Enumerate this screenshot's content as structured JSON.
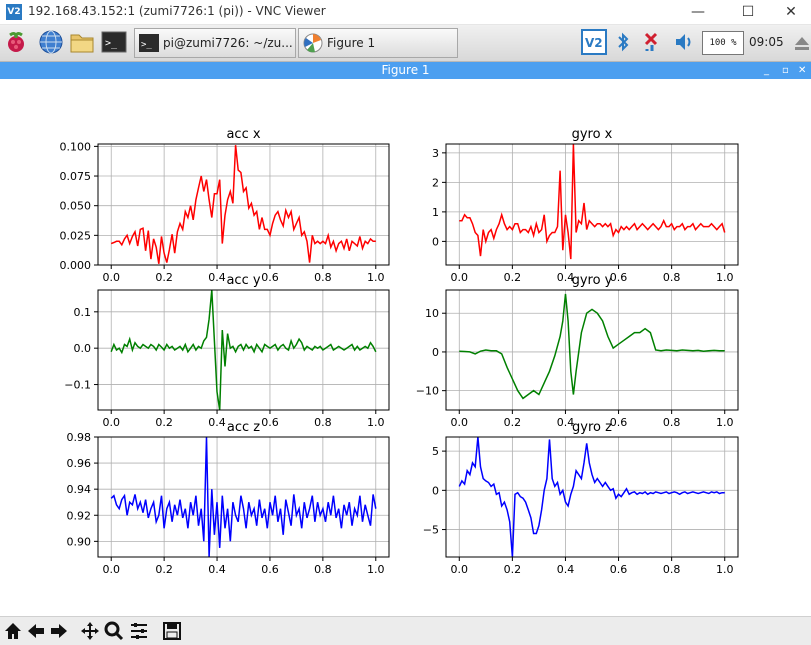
{
  "window": {
    "logo_text": "V2",
    "title": "192.168.43.152:1 (zumi7726:1 (pi)) - VNC Viewer",
    "minimize": "—",
    "maximize": "☐",
    "close": "✕"
  },
  "panel": {
    "terminal_task": "pi@zumi7726: ~/zu...",
    "figure_task": "Figure 1",
    "volume": "100 %",
    "clock": "09:05"
  },
  "figure_window": {
    "title": "Figure 1",
    "minimize": "_",
    "maximize": "▫",
    "close": "✕"
  },
  "colors": {
    "x_series": "#ff0000",
    "y_series": "#008000",
    "z_series": "#0000ff",
    "grid": "#b0b0b0"
  },
  "toolbar": {
    "icons": [
      "home-icon",
      "back-icon",
      "forward-icon",
      "pan-icon",
      "zoom-icon",
      "configure-subplots-icon",
      "save-icon"
    ]
  },
  "chart_data": [
    {
      "type": "line",
      "title": "acc x",
      "color": "#ff0000",
      "xlim": [
        -0.05,
        1.05
      ],
      "ylim": [
        0.0,
        0.102
      ],
      "xticks": [
        "0.0",
        "0.2",
        "0.4",
        "0.6",
        "0.8",
        "1.0"
      ],
      "yticks": [
        "0.000",
        "0.025",
        "0.050",
        "0.075",
        "0.100"
      ],
      "ytick_values": [
        0,
        0.025,
        0.05,
        0.075,
        0.1
      ],
      "x": [
        0.0,
        0.01,
        0.02,
        0.03,
        0.04,
        0.05,
        0.06,
        0.07,
        0.08,
        0.09,
        0.1,
        0.11,
        0.12,
        0.13,
        0.14,
        0.15,
        0.16,
        0.17,
        0.18,
        0.19,
        0.2,
        0.21,
        0.22,
        0.23,
        0.24,
        0.25,
        0.26,
        0.27,
        0.28,
        0.29,
        0.3,
        0.31,
        0.32,
        0.33,
        0.34,
        0.35,
        0.36,
        0.37,
        0.38,
        0.39,
        0.4,
        0.41,
        0.42,
        0.43,
        0.44,
        0.45,
        0.46,
        0.47,
        0.48,
        0.49,
        0.5,
        0.51,
        0.52,
        0.53,
        0.54,
        0.55,
        0.56,
        0.57,
        0.58,
        0.59,
        0.6,
        0.61,
        0.62,
        0.63,
        0.64,
        0.65,
        0.66,
        0.67,
        0.68,
        0.69,
        0.7,
        0.71,
        0.72,
        0.73,
        0.74,
        0.75,
        0.76,
        0.77,
        0.78,
        0.79,
        0.8,
        0.81,
        0.82,
        0.83,
        0.84,
        0.85,
        0.86,
        0.87,
        0.88,
        0.89,
        0.9,
        0.91,
        0.92,
        0.93,
        0.94,
        0.95,
        0.96,
        0.97,
        0.98,
        0.99,
        1.0
      ],
      "values": [
        0.018,
        0.019,
        0.02,
        0.02,
        0.017,
        0.022,
        0.025,
        0.018,
        0.024,
        0.028,
        0.016,
        0.03,
        0.031,
        0.012,
        0.029,
        0.005,
        0.022,
        0.015,
        0.001,
        0.024,
        0.01,
        0.002,
        0.013,
        0.026,
        0.01,
        0.028,
        0.035,
        0.03,
        0.045,
        0.04,
        0.05,
        0.038,
        0.055,
        0.065,
        0.075,
        0.062,
        0.072,
        0.055,
        0.04,
        0.06,
        0.06,
        0.072,
        0.018,
        0.042,
        0.055,
        0.062,
        0.052,
        0.101,
        0.08,
        0.078,
        0.062,
        0.065,
        0.048,
        0.052,
        0.042,
        0.045,
        0.03,
        0.04,
        0.03,
        0.03,
        0.025,
        0.035,
        0.042,
        0.045,
        0.038,
        0.033,
        0.046,
        0.04,
        0.045,
        0.03,
        0.035,
        0.04,
        0.025,
        0.028,
        0.02,
        0.002,
        0.025,
        0.018,
        0.02,
        0.018,
        0.02,
        0.018,
        0.025,
        0.015,
        0.02,
        0.012,
        0.018,
        0.02,
        0.014,
        0.022,
        0.012,
        0.02,
        0.018,
        0.016,
        0.024,
        0.014,
        0.02,
        0.018,
        0.022,
        0.02,
        0.02
      ]
    },
    {
      "type": "line",
      "title": "gyro x",
      "color": "#ff0000",
      "xlim": [
        -0.05,
        1.05
      ],
      "ylim": [
        -0.8,
        3.3
      ],
      "xticks": [
        "0.0",
        "0.2",
        "0.4",
        "0.6",
        "0.8",
        "1.0"
      ],
      "yticks": [
        "0",
        "1",
        "2",
        "3"
      ],
      "ytick_values": [
        0,
        1,
        2,
        3
      ],
      "x": [
        0.0,
        0.01,
        0.02,
        0.03,
        0.04,
        0.05,
        0.06,
        0.07,
        0.08,
        0.09,
        0.1,
        0.11,
        0.12,
        0.13,
        0.14,
        0.15,
        0.16,
        0.17,
        0.18,
        0.19,
        0.2,
        0.21,
        0.22,
        0.23,
        0.24,
        0.25,
        0.26,
        0.27,
        0.28,
        0.29,
        0.3,
        0.31,
        0.32,
        0.33,
        0.34,
        0.35,
        0.36,
        0.37,
        0.38,
        0.39,
        0.4,
        0.41,
        0.42,
        0.43,
        0.44,
        0.45,
        0.46,
        0.47,
        0.48,
        0.49,
        0.5,
        0.51,
        0.52,
        0.53,
        0.54,
        0.55,
        0.56,
        0.57,
        0.58,
        0.59,
        0.6,
        0.61,
        0.62,
        0.63,
        0.64,
        0.65,
        0.66,
        0.67,
        0.68,
        0.69,
        0.7,
        0.71,
        0.72,
        0.73,
        0.74,
        0.75,
        0.76,
        0.77,
        0.78,
        0.79,
        0.8,
        0.81,
        0.82,
        0.83,
        0.84,
        0.85,
        0.86,
        0.87,
        0.88,
        0.89,
        0.9,
        0.91,
        0.92,
        0.93,
        0.94,
        0.95,
        0.96,
        0.97,
        0.98,
        0.99,
        1.0
      ],
      "values": [
        0.7,
        0.7,
        0.9,
        0.8,
        0.8,
        0.6,
        0.3,
        0.2,
        -0.5,
        0.4,
        0.0,
        0.3,
        0.4,
        0.1,
        0.4,
        0.6,
        0.9,
        0.6,
        0.4,
        0.5,
        0.4,
        0.6,
        0.6,
        0.3,
        0.4,
        0.4,
        0.3,
        0.5,
        0.2,
        0.6,
        0.3,
        0.4,
        0.9,
        0.0,
        0.2,
        0.3,
        0.3,
        0.5,
        2.4,
        -0.3,
        0.9,
        0.3,
        -0.6,
        3.3,
        0.3,
        0.7,
        0.6,
        1.3,
        0.4,
        0.7,
        0.6,
        0.5,
        0.6,
        0.6,
        0.5,
        0.6,
        0.5,
        0.6,
        0.2,
        0.4,
        0.3,
        0.5,
        0.4,
        0.5,
        0.4,
        0.5,
        0.6,
        0.4,
        0.5,
        0.6,
        0.5,
        0.4,
        0.5,
        0.6,
        0.5,
        0.4,
        0.5,
        0.7,
        0.5,
        0.5,
        0.6,
        0.4,
        0.5,
        0.5,
        0.6,
        0.4,
        0.5,
        0.5,
        0.6,
        0.4,
        0.5,
        0.6,
        0.5,
        0.5,
        0.5,
        0.6,
        0.5,
        0.4,
        0.5,
        0.6,
        0.3
      ]
    },
    {
      "type": "line",
      "title": "acc y",
      "color": "#008000",
      "xlim": [
        -0.05,
        1.05
      ],
      "ylim": [
        -0.17,
        0.16
      ],
      "xticks": [
        "0.0",
        "0.2",
        "0.4",
        "0.6",
        "0.8",
        "1.0"
      ],
      "yticks": [
        "−0.1",
        "0.0",
        "0.1"
      ],
      "ytick_values": [
        -0.1,
        0,
        0.1
      ],
      "x": [
        0.0,
        0.01,
        0.02,
        0.03,
        0.04,
        0.05,
        0.06,
        0.07,
        0.08,
        0.09,
        0.1,
        0.11,
        0.12,
        0.13,
        0.14,
        0.15,
        0.16,
        0.17,
        0.18,
        0.19,
        0.2,
        0.21,
        0.22,
        0.23,
        0.24,
        0.25,
        0.26,
        0.27,
        0.28,
        0.29,
        0.3,
        0.31,
        0.32,
        0.33,
        0.34,
        0.35,
        0.36,
        0.37,
        0.38,
        0.39,
        0.4,
        0.41,
        0.42,
        0.43,
        0.44,
        0.45,
        0.46,
        0.47,
        0.48,
        0.49,
        0.5,
        0.51,
        0.52,
        0.53,
        0.54,
        0.55,
        0.56,
        0.57,
        0.58,
        0.59,
        0.6,
        0.61,
        0.62,
        0.63,
        0.64,
        0.65,
        0.66,
        0.67,
        0.68,
        0.69,
        0.7,
        0.71,
        0.72,
        0.73,
        0.74,
        0.75,
        0.76,
        0.77,
        0.78,
        0.79,
        0.8,
        0.81,
        0.82,
        0.83,
        0.84,
        0.85,
        0.86,
        0.87,
        0.88,
        0.89,
        0.9,
        0.91,
        0.92,
        0.93,
        0.94,
        0.95,
        0.96,
        0.97,
        0.98,
        0.99,
        1.0
      ],
      "values": [
        -0.01,
        0.01,
        -0.005,
        0.0,
        -0.012,
        0.01,
        0.005,
        0.025,
        -0.005,
        0.015,
        0.005,
        0.0,
        0.01,
        0.005,
        0.0,
        0.01,
        0.005,
        -0.005,
        0.01,
        0.003,
        -0.005,
        0.01,
        0.0,
        0.005,
        -0.005,
        0.0,
        0.005,
        -0.005,
        0.01,
        -0.01,
        0.0,
        0.01,
        -0.005,
        0.005,
        0.0,
        0.02,
        0.03,
        0.08,
        0.16,
        0.02,
        -0.12,
        -0.17,
        0.05,
        -0.05,
        0.04,
        0.0,
        0.005,
        -0.01,
        0.005,
        0.01,
        -0.005,
        0.01,
        0.0,
        0.005,
        -0.01,
        0.01,
        0.0,
        -0.01,
        0.01,
        0.005,
        0.0,
        0.005,
        0.01,
        -0.005,
        0.005,
        0.01,
        0.0,
        -0.005,
        0.02,
        0.0,
        0.01,
        0.025,
        0.015,
        -0.005,
        0.005,
        0.0,
        -0.005,
        0.005,
        0.0,
        0.005,
        -0.005,
        0.0,
        0.005,
        0.01,
        -0.005,
        0.0,
        0.005,
        0.0,
        -0.005,
        0.0,
        0.005,
        0.01,
        -0.005,
        0.005,
        -0.005,
        0.0,
        0.005,
        0.0,
        0.015,
        0.005,
        -0.01
      ]
    },
    {
      "type": "line",
      "title": "gyro y",
      "color": "#008000",
      "xlim": [
        -0.05,
        1.05
      ],
      "ylim": [
        -15,
        16
      ],
      "xticks": [
        "0.0",
        "0.2",
        "0.4",
        "0.6",
        "0.8",
        "1.0"
      ],
      "yticks": [
        "−10",
        "0",
        "10"
      ],
      "ytick_values": [
        -10,
        0,
        10
      ],
      "x": [
        0.0,
        0.02,
        0.04,
        0.06,
        0.08,
        0.1,
        0.12,
        0.14,
        0.16,
        0.18,
        0.2,
        0.22,
        0.24,
        0.26,
        0.28,
        0.3,
        0.32,
        0.34,
        0.36,
        0.38,
        0.39,
        0.4,
        0.41,
        0.42,
        0.43,
        0.44,
        0.46,
        0.48,
        0.5,
        0.52,
        0.54,
        0.56,
        0.58,
        0.6,
        0.62,
        0.64,
        0.66,
        0.68,
        0.7,
        0.72,
        0.74,
        0.76,
        0.78,
        0.8,
        0.82,
        0.84,
        0.86,
        0.88,
        0.9,
        0.92,
        0.94,
        0.96,
        0.98,
        1.0
      ],
      "values": [
        0.2,
        0.1,
        0.0,
        -0.5,
        0.2,
        0.5,
        0.3,
        0.3,
        -0.5,
        -4,
        -7,
        -10,
        -12,
        -11,
        -10,
        -11,
        -8,
        -5,
        -1,
        4,
        8,
        15,
        8,
        -5,
        -11,
        -5,
        5,
        10,
        11,
        10,
        8,
        4,
        1,
        2,
        3,
        4,
        5,
        5,
        6,
        5,
        0.5,
        0.3,
        0.5,
        0.4,
        0.3,
        0.5,
        0.4,
        0.3,
        0.4,
        0.2,
        0.3,
        0.4,
        0.3,
        0.3
      ]
    },
    {
      "type": "line",
      "title": "acc z",
      "color": "#0000ff",
      "xlim": [
        -0.05,
        1.05
      ],
      "ylim": [
        0.888,
        0.98
      ],
      "xticks": [
        "0.0",
        "0.2",
        "0.4",
        "0.6",
        "0.8",
        "1.0"
      ],
      "yticks": [
        "0.90",
        "0.92",
        "0.94",
        "0.96",
        "0.98"
      ],
      "ytick_values": [
        0.9,
        0.92,
        0.94,
        0.96,
        0.98
      ],
      "x": [
        0.0,
        0.01,
        0.02,
        0.03,
        0.04,
        0.05,
        0.06,
        0.07,
        0.08,
        0.09,
        0.1,
        0.11,
        0.12,
        0.13,
        0.14,
        0.15,
        0.16,
        0.17,
        0.18,
        0.19,
        0.2,
        0.21,
        0.22,
        0.23,
        0.24,
        0.25,
        0.26,
        0.27,
        0.28,
        0.29,
        0.3,
        0.31,
        0.32,
        0.33,
        0.34,
        0.35,
        0.36,
        0.37,
        0.38,
        0.39,
        0.4,
        0.41,
        0.42,
        0.43,
        0.44,
        0.45,
        0.46,
        0.47,
        0.48,
        0.49,
        0.5,
        0.51,
        0.52,
        0.53,
        0.54,
        0.55,
        0.56,
        0.57,
        0.58,
        0.59,
        0.6,
        0.61,
        0.62,
        0.63,
        0.64,
        0.65,
        0.66,
        0.67,
        0.68,
        0.69,
        0.7,
        0.71,
        0.72,
        0.73,
        0.74,
        0.75,
        0.76,
        0.77,
        0.78,
        0.79,
        0.8,
        0.81,
        0.82,
        0.83,
        0.84,
        0.85,
        0.86,
        0.87,
        0.88,
        0.89,
        0.9,
        0.91,
        0.92,
        0.93,
        0.94,
        0.95,
        0.96,
        0.97,
        0.98,
        0.99,
        1.0
      ],
      "values": [
        0.933,
        0.935,
        0.928,
        0.925,
        0.932,
        0.935,
        0.92,
        0.93,
        0.928,
        0.936,
        0.925,
        0.93,
        0.922,
        0.932,
        0.918,
        0.925,
        0.93,
        0.915,
        0.92,
        0.935,
        0.91,
        0.925,
        0.93,
        0.915,
        0.928,
        0.92,
        0.932,
        0.918,
        0.925,
        0.91,
        0.93,
        0.92,
        0.935,
        0.912,
        0.925,
        0.9,
        0.98,
        0.888,
        0.94,
        0.905,
        0.93,
        0.895,
        0.935,
        0.91,
        0.925,
        0.9,
        0.93,
        0.92,
        0.915,
        0.935,
        0.925,
        0.91,
        0.93,
        0.92,
        0.925,
        0.912,
        0.932,
        0.918,
        0.925,
        0.91,
        0.93,
        0.92,
        0.935,
        0.915,
        0.925,
        0.905,
        0.932,
        0.922,
        0.912,
        0.936,
        0.92,
        0.925,
        0.91,
        0.93,
        0.918,
        0.925,
        0.935,
        0.915,
        0.93,
        0.92,
        0.925,
        0.915,
        0.93,
        0.92,
        0.935,
        0.918,
        0.925,
        0.91,
        0.928,
        0.92,
        0.93,
        0.912,
        0.925,
        0.92,
        0.935,
        0.915,
        0.928,
        0.92,
        0.912,
        0.936,
        0.925
      ]
    },
    {
      "type": "line",
      "title": "gyro z",
      "color": "#0000ff",
      "xlim": [
        -0.05,
        1.05
      ],
      "ylim": [
        -8.5,
        6.8
      ],
      "xticks": [
        "0.0",
        "0.2",
        "0.4",
        "0.6",
        "0.8",
        "1.0"
      ],
      "yticks": [
        "−5",
        "0",
        "5"
      ],
      "ytick_values": [
        -5,
        0,
        5
      ],
      "x": [
        0.0,
        0.01,
        0.02,
        0.03,
        0.04,
        0.05,
        0.06,
        0.07,
        0.08,
        0.09,
        0.1,
        0.11,
        0.12,
        0.13,
        0.14,
        0.15,
        0.16,
        0.17,
        0.18,
        0.19,
        0.2,
        0.21,
        0.22,
        0.23,
        0.24,
        0.25,
        0.26,
        0.27,
        0.28,
        0.29,
        0.3,
        0.31,
        0.32,
        0.33,
        0.34,
        0.35,
        0.36,
        0.37,
        0.38,
        0.39,
        0.4,
        0.41,
        0.42,
        0.43,
        0.44,
        0.45,
        0.46,
        0.47,
        0.48,
        0.49,
        0.5,
        0.51,
        0.52,
        0.53,
        0.54,
        0.55,
        0.56,
        0.57,
        0.58,
        0.59,
        0.6,
        0.61,
        0.62,
        0.63,
        0.64,
        0.65,
        0.66,
        0.67,
        0.68,
        0.69,
        0.7,
        0.71,
        0.72,
        0.73,
        0.74,
        0.75,
        0.76,
        0.77,
        0.78,
        0.79,
        0.8,
        0.81,
        0.82,
        0.83,
        0.84,
        0.85,
        0.86,
        0.87,
        0.88,
        0.89,
        0.9,
        0.91,
        0.92,
        0.93,
        0.94,
        0.95,
        0.96,
        0.97,
        0.98,
        0.99,
        1.0
      ],
      "values": [
        0.5,
        1.2,
        0.8,
        2.5,
        2.0,
        3.5,
        3.0,
        6.8,
        3.0,
        1.5,
        1.2,
        1.0,
        0.5,
        0.8,
        -0.5,
        -0.3,
        -2.0,
        -1.5,
        -2.5,
        -4.0,
        -8.5,
        -0.5,
        -0.3,
        -0.8,
        -1.0,
        -1.5,
        -2.5,
        -3.5,
        -5.5,
        -5.5,
        -4.5,
        -2.5,
        0.0,
        1.5,
        6.5,
        1.5,
        0.5,
        1.0,
        -0.5,
        0.0,
        -1.5,
        -2.0,
        -0.5,
        0.5,
        2.5,
        2.0,
        1.5,
        3.5,
        6.0,
        3.5,
        2.0,
        1.0,
        1.5,
        1.0,
        0.5,
        1.0,
        0.5,
        0.0,
        0.2,
        -1.0,
        -0.5,
        -0.8,
        -0.3,
        0.2,
        -0.5,
        -0.3,
        -0.2,
        -0.5,
        -0.3,
        -0.4,
        -0.2,
        -0.5,
        -0.3,
        -0.4,
        -0.2,
        -0.3,
        -0.4,
        -0.3,
        -0.2,
        -0.4,
        -0.3,
        -0.2,
        -0.3,
        -0.5,
        -0.3,
        -0.2,
        -0.4,
        -0.3,
        -0.2,
        -0.3,
        -0.4,
        -0.3,
        -0.2,
        -0.3,
        -0.4,
        -0.2,
        -0.3,
        -0.2,
        -0.4,
        -0.3,
        -0.3
      ]
    }
  ]
}
